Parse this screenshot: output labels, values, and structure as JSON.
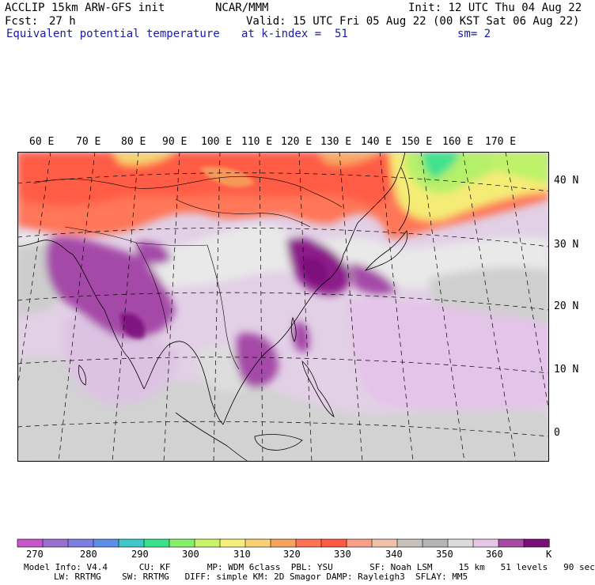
{
  "header": {
    "model": "ACCLIP 15km ARW-GFS init",
    "org": "NCAR/MMM",
    "init": "Init: 12 UTC Thu 04 Aug 22",
    "fcst_label": "Fcst:",
    "fcst_value": "27 h",
    "valid": "Valid: 15 UTC Fri 05 Aug 22 (00 KST Sat 06 Aug 22)",
    "field": "Equivalent potential temperature",
    "level": "at k-index =  51",
    "smoothing": "sm= 2"
  },
  "map": {
    "lon_labels": [
      "60 E",
      "70 E",
      "80 E",
      "90 E",
      "100 E",
      "110 E",
      "120 E",
      "130 E",
      "140 E",
      "150 E",
      "160 E",
      "170 E"
    ],
    "lat_labels": [
      "40 N",
      "30 N",
      "20 N",
      "10 N",
      "0"
    ]
  },
  "colorbar": {
    "labels": [
      "270",
      "280",
      "290",
      "300",
      "310",
      "320",
      "330",
      "340",
      "350",
      "360"
    ],
    "unit": "K",
    "colors": [
      "#c557c9",
      "#9a6fd2",
      "#7e7ee0",
      "#5f8ee6",
      "#3fc7c7",
      "#38e28a",
      "#86f06a",
      "#c9f469",
      "#f4f07a",
      "#f7d173",
      "#f6a35f",
      "#ff7355",
      "#ff5a46",
      "#f8a087",
      "#f0c2aa",
      "#c7c0bb",
      "#b5b5b5",
      "#dcdcdc",
      "#e6c8e6",
      "#a64aa3",
      "#7a0f7a"
    ]
  },
  "model_info": {
    "line1": "Model Info: V4.4      CU: KF       MP: WDM 6class  PBL: YSU       SF: Noah LSM     15 km   51 levels   90 sec",
    "line2": "LW: RRTMG    SW: RRTMG   DIFF: simple KM: 2D Smagor DAMP: Rayleigh3  SFLAY: MM5"
  }
}
